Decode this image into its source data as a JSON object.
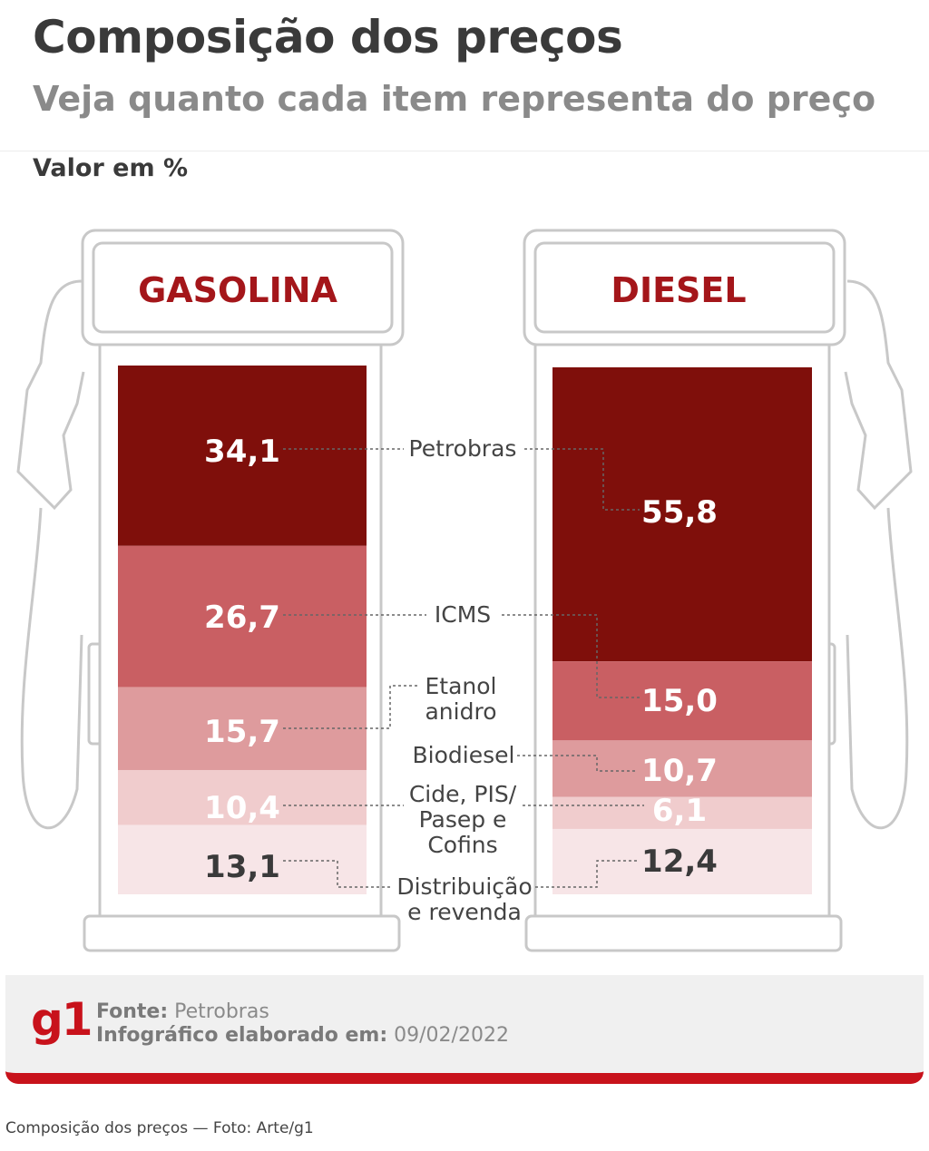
{
  "header": {
    "title": "Composição dos preços",
    "subtitle": "Veja quanto cada item representa do preço",
    "unit_label": "Valor em %"
  },
  "chart_data": {
    "type": "bar",
    "stacked": true,
    "categories": [
      "GASOLINA",
      "DIESEL"
    ],
    "series": [
      {
        "name": "Petrobras",
        "label_lines": [
          "Petrobras"
        ],
        "values": [
          34.1,
          55.8
        ],
        "labels": [
          "34,1",
          "55,8"
        ],
        "color": "#7f0f0b"
      },
      {
        "name": "ICMS",
        "label_lines": [
          "ICMS"
        ],
        "values": [
          26.7,
          15.0
        ],
        "labels": [
          "26,7",
          "15,0"
        ],
        "color": "#c95f63"
      },
      {
        "name": "Etanol anidro / Biodiesel",
        "label_lines_gasolina": [
          "Etanol",
          "anidro"
        ],
        "label_lines_diesel": [
          "Biodiesel"
        ],
        "values": [
          15.7,
          10.7
        ],
        "labels": [
          "15,7",
          "10,7"
        ],
        "color": "#de9b9d"
      },
      {
        "name": "Cide, PIS/ Pasep e Cofins",
        "label_lines": [
          "Cide, PIS/",
          "Pasep e",
          "Cofins"
        ],
        "values": [
          10.4,
          6.1
        ],
        "labels": [
          "10,4",
          "6,1"
        ],
        "color": "#f0cccd"
      },
      {
        "name": "Distribuição e revenda",
        "label_lines": [
          "Distribuição",
          "e revenda"
        ],
        "values": [
          13.1,
          12.4
        ],
        "labels": [
          "13,1",
          "12,4"
        ],
        "color": "#f7e5e7"
      }
    ],
    "ylim": [
      0,
      100
    ],
    "grid": false,
    "legend": "center"
  },
  "footer": {
    "logo": "g1",
    "source_label": "Fonte:",
    "source_value": "Petrobras",
    "date_label": "Infográfico elaborado em:",
    "date_value": "09/02/2022"
  },
  "caption": "Composição dos preços — Foto: Arte/g1"
}
